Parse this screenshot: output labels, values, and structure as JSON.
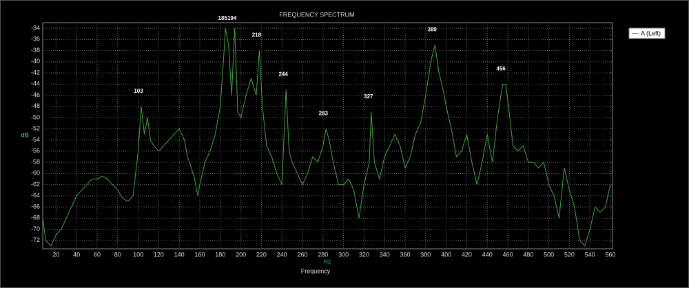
{
  "chart_data": {
    "type": "line",
    "title": "FREQUENCY SPECTRUM",
    "xlabel": "Frequency",
    "x_unit": "Hz",
    "ylabel": "dB",
    "x": [
      7,
      10,
      15,
      20,
      25,
      30,
      35,
      40,
      45,
      50,
      55,
      60,
      65,
      70,
      75,
      80,
      85,
      90,
      95,
      100,
      103,
      106,
      109,
      112,
      115,
      120,
      125,
      130,
      135,
      140,
      145,
      148,
      150,
      155,
      158,
      160,
      165,
      170,
      175,
      180,
      183,
      185,
      188,
      191,
      194,
      197,
      200,
      205,
      210,
      215,
      218,
      221,
      225,
      230,
      235,
      240,
      244,
      247,
      250,
      255,
      260,
      265,
      270,
      275,
      280,
      283,
      286,
      290,
      295,
      300,
      305,
      310,
      315,
      320,
      325,
      327,
      330,
      335,
      340,
      345,
      350,
      355,
      360,
      365,
      370,
      375,
      380,
      385,
      389,
      393,
      397,
      400,
      405,
      410,
      415,
      420,
      425,
      430,
      435,
      440,
      445,
      450,
      455,
      458,
      462,
      465,
      470,
      475,
      480,
      485,
      490,
      495,
      500,
      505,
      510,
      515,
      520,
      525,
      530,
      535,
      540,
      545,
      550,
      555,
      560
    ],
    "series": [
      {
        "name": "A (Left)",
        "color": "#3fa83a",
        "values": [
          -68,
          -72,
          -73,
          -71,
          -70,
          -68,
          -66,
          -64,
          -63,
          -62,
          -61,
          -61,
          -60.5,
          -61,
          -62,
          -63,
          -64.5,
          -65,
          -64,
          -56,
          -48,
          -53,
          -50,
          -54,
          -55,
          -56,
          -55,
          -54,
          -53,
          -52,
          -54,
          -57,
          -58,
          -61,
          -64,
          -62,
          -58,
          -56,
          -53,
          -48,
          -40,
          -34,
          -37,
          -46,
          -34,
          -49,
          -50,
          -46,
          -43,
          -46,
          -38,
          -48,
          -55,
          -57,
          -60,
          -62,
          -45,
          -56,
          -58,
          -60,
          -62,
          -60,
          -57,
          -58,
          -55,
          -52,
          -54,
          -58,
          -62,
          -62,
          -61,
          -63,
          -68,
          -62,
          -58,
          -49,
          -58,
          -61,
          -57,
          -55,
          -53,
          -55,
          -59,
          -57,
          -53,
          -51,
          -46,
          -40,
          -37,
          -42,
          -45,
          -48,
          -52,
          -57,
          -56,
          -53,
          -58,
          -62,
          -58,
          -53,
          -58,
          -50,
          -44,
          -44,
          -50,
          -55,
          -56,
          -55,
          -58,
          -58,
          -59,
          -58,
          -62,
          -64,
          -68,
          -59,
          -63,
          -66,
          -72,
          -73,
          -70,
          -66,
          -67,
          -66,
          -62
        ]
      }
    ],
    "peaks": [
      103,
      185,
      194,
      218,
      244,
      283,
      327,
      389,
      456
    ],
    "xlim": [
      7,
      562
    ],
    "ylim": [
      -73.5,
      -33
    ],
    "xticks": [
      20,
      40,
      60,
      80,
      100,
      120,
      140,
      160,
      180,
      200,
      220,
      240,
      260,
      280,
      300,
      320,
      340,
      360,
      380,
      400,
      420,
      440,
      460,
      480,
      500,
      520,
      540,
      560
    ],
    "yticks": [
      -34,
      -36,
      -38,
      -40,
      -42,
      -44,
      -46,
      -48,
      -50,
      -52,
      -54,
      -56,
      -58,
      -60,
      -62,
      -64,
      -66,
      -68,
      -70,
      -72
    ],
    "grid": true
  }
}
